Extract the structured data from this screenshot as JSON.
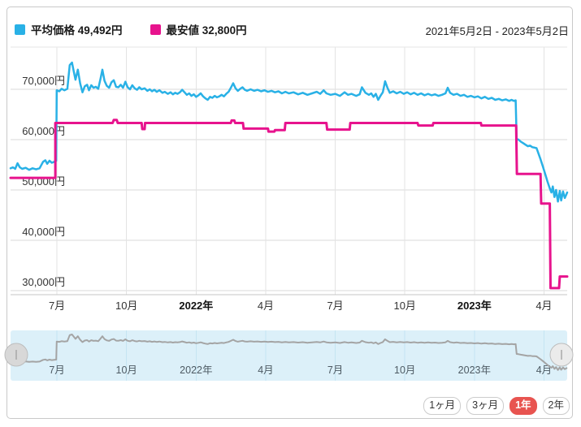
{
  "legend": {
    "items": [
      {
        "label": "平均価格 49,492円",
        "swatch_color": "#29b1e6"
      },
      {
        "label": "最安値 32,800円",
        "swatch_color": "#e7138d"
      }
    ],
    "date_range": "2021年5月2日 - 2023年5月2日"
  },
  "range_buttons": [
    {
      "label": "1ヶ月",
      "selected": false
    },
    {
      "label": "3ヶ月",
      "selected": false
    },
    {
      "label": "1年",
      "selected": true
    },
    {
      "label": "2年",
      "selected": false
    }
  ],
  "colors": {
    "average_line": "#29b1e6",
    "lowest_line": "#e7138d",
    "grid_h": "#d9d9d9",
    "grid_v": "#e3e3e3",
    "axis_line": "#c6c6c6",
    "plot_top_line": "#e6e6e6",
    "navigator_bg": "#dcf0f9",
    "navigator_grid": "#c5e5f2",
    "navigator_line": "#a4a4a4",
    "handle_fill_left": "#d8d8d8",
    "handle_fill_right": "#ebebeb",
    "handle_stroke": "#bdbdbd",
    "selected_button_bg": "#e85450"
  },
  "chart_data": {
    "type": "line",
    "title": "",
    "x_axis": {
      "unit": "months since 2021-05-02",
      "range": [
        0,
        24
      ],
      "ticks": [
        {
          "t": 2,
          "label": "7月",
          "bold": false
        },
        {
          "t": 5,
          "label": "10月",
          "bold": false
        },
        {
          "t": 8,
          "label": "2022年",
          "bold": true
        },
        {
          "t": 11,
          "label": "4月",
          "bold": false
        },
        {
          "t": 14,
          "label": "7月",
          "bold": false
        },
        {
          "t": 17,
          "label": "10月",
          "bold": false
        },
        {
          "t": 20,
          "label": "2023年",
          "bold": true
        },
        {
          "t": 23,
          "label": "4月",
          "bold": false
        }
      ]
    },
    "y_axis": {
      "range": [
        29200,
        78400
      ],
      "grid": true,
      "ticks": [
        {
          "value": 30000,
          "label": "30,000円"
        },
        {
          "value": 40000,
          "label": "40,000円"
        },
        {
          "value": 50000,
          "label": "50,000円"
        },
        {
          "value": 60000,
          "label": "60,000円"
        },
        {
          "value": 70000,
          "label": "70,000円"
        }
      ]
    },
    "series": [
      {
        "name": "平均価格",
        "current_value": 49492,
        "color": "#29b1e6",
        "points": [
          [
            0,
            54300
          ],
          [
            0.1,
            54500
          ],
          [
            0.2,
            54200
          ],
          [
            0.3,
            55300
          ],
          [
            0.4,
            54500
          ],
          [
            0.5,
            54200
          ],
          [
            0.65,
            54400
          ],
          [
            0.8,
            54000
          ],
          [
            0.95,
            54300
          ],
          [
            1.1,
            54100
          ],
          [
            1.25,
            54300
          ],
          [
            1.4,
            55600
          ],
          [
            1.5,
            55900
          ],
          [
            1.58,
            55200
          ],
          [
            1.68,
            55800
          ],
          [
            1.78,
            55400
          ],
          [
            1.88,
            55600
          ],
          [
            1.97,
            55800
          ],
          [
            1.99,
            69800
          ],
          [
            2.1,
            69600
          ],
          [
            2.2,
            70100
          ],
          [
            2.32,
            69800
          ],
          [
            2.45,
            70100
          ],
          [
            2.55,
            74800
          ],
          [
            2.65,
            75300
          ],
          [
            2.72,
            73700
          ],
          [
            2.8,
            71900
          ],
          [
            2.9,
            73900
          ],
          [
            3.0,
            71200
          ],
          [
            3.1,
            69400
          ],
          [
            3.2,
            70600
          ],
          [
            3.3,
            70900
          ],
          [
            3.38,
            69800
          ],
          [
            3.48,
            70800
          ],
          [
            3.58,
            70300
          ],
          [
            3.68,
            70500
          ],
          [
            3.78,
            70100
          ],
          [
            3.88,
            72100
          ],
          [
            3.96,
            73900
          ],
          [
            4.05,
            71700
          ],
          [
            4.15,
            70700
          ],
          [
            4.25,
            70300
          ],
          [
            4.35,
            71400
          ],
          [
            4.45,
            71800
          ],
          [
            4.55,
            70500
          ],
          [
            4.65,
            70400
          ],
          [
            4.75,
            70900
          ],
          [
            4.85,
            70300
          ],
          [
            4.95,
            71500
          ],
          [
            5.05,
            70400
          ],
          [
            5.15,
            70000
          ],
          [
            5.25,
            70800
          ],
          [
            5.35,
            70200
          ],
          [
            5.45,
            69900
          ],
          [
            5.55,
            70400
          ],
          [
            5.65,
            70000
          ],
          [
            5.78,
            70200
          ],
          [
            5.9,
            69700
          ],
          [
            6.0,
            70000
          ],
          [
            6.1,
            69600
          ],
          [
            6.2,
            69900
          ],
          [
            6.3,
            69500
          ],
          [
            6.42,
            69800
          ],
          [
            6.55,
            69300
          ],
          [
            6.65,
            69500
          ],
          [
            6.78,
            69100
          ],
          [
            6.9,
            69400
          ],
          [
            7.0,
            69000
          ],
          [
            7.1,
            69300
          ],
          [
            7.2,
            69100
          ],
          [
            7.3,
            69400
          ],
          [
            7.4,
            69900
          ],
          [
            7.5,
            69400
          ],
          [
            7.6,
            68900
          ],
          [
            7.7,
            69200
          ],
          [
            7.8,
            68700
          ],
          [
            7.9,
            69000
          ],
          [
            8.0,
            68500
          ],
          [
            8.1,
            68800
          ],
          [
            8.2,
            69200
          ],
          [
            8.3,
            68600
          ],
          [
            8.4,
            68200
          ],
          [
            8.5,
            67900
          ],
          [
            8.6,
            68500
          ],
          [
            8.7,
            68300
          ],
          [
            8.8,
            68700
          ],
          [
            8.9,
            68400
          ],
          [
            9.0,
            68600
          ],
          [
            9.1,
            68900
          ],
          [
            9.2,
            68600
          ],
          [
            9.3,
            69100
          ],
          [
            9.4,
            69500
          ],
          [
            9.5,
            70300
          ],
          [
            9.6,
            71200
          ],
          [
            9.7,
            70200
          ],
          [
            9.8,
            69700
          ],
          [
            9.9,
            70100
          ],
          [
            10.0,
            70400
          ],
          [
            10.1,
            69900
          ],
          [
            10.2,
            69700
          ],
          [
            10.35,
            70000
          ],
          [
            10.5,
            69700
          ],
          [
            10.65,
            69900
          ],
          [
            10.8,
            69600
          ],
          [
            10.95,
            69800
          ],
          [
            11.1,
            69500
          ],
          [
            11.25,
            69700
          ],
          [
            11.4,
            69400
          ],
          [
            11.55,
            69600
          ],
          [
            11.7,
            69200
          ],
          [
            11.85,
            69500
          ],
          [
            12.0,
            69200
          ],
          [
            12.2,
            69400
          ],
          [
            12.4,
            69000
          ],
          [
            12.6,
            69300
          ],
          [
            12.8,
            68900
          ],
          [
            13.0,
            69200
          ],
          [
            13.2,
            69500
          ],
          [
            13.35,
            69100
          ],
          [
            13.5,
            69800
          ],
          [
            13.62,
            69200
          ],
          [
            13.8,
            68900
          ],
          [
            14.0,
            69100
          ],
          [
            14.2,
            68700
          ],
          [
            14.4,
            69400
          ],
          [
            14.55,
            68900
          ],
          [
            14.7,
            69100
          ],
          [
            14.9,
            68700
          ],
          [
            15.05,
            69000
          ],
          [
            15.15,
            70400
          ],
          [
            15.3,
            69300
          ],
          [
            15.45,
            68900
          ],
          [
            15.55,
            69200
          ],
          [
            15.65,
            68500
          ],
          [
            15.75,
            69100
          ],
          [
            15.85,
            67900
          ],
          [
            15.95,
            68700
          ],
          [
            16.05,
            69400
          ],
          [
            16.15,
            71600
          ],
          [
            16.25,
            70300
          ],
          [
            16.35,
            69300
          ],
          [
            16.5,
            69600
          ],
          [
            16.65,
            69200
          ],
          [
            16.8,
            69500
          ],
          [
            16.95,
            69100
          ],
          [
            17.1,
            69400
          ],
          [
            17.25,
            69000
          ],
          [
            17.4,
            69300
          ],
          [
            17.55,
            68900
          ],
          [
            17.7,
            69200
          ],
          [
            17.85,
            68800
          ],
          [
            18.0,
            69100
          ],
          [
            18.15,
            68800
          ],
          [
            18.3,
            69000
          ],
          [
            18.45,
            68700
          ],
          [
            18.6,
            68900
          ],
          [
            18.75,
            69200
          ],
          [
            18.85,
            70300
          ],
          [
            18.95,
            69300
          ],
          [
            19.1,
            68900
          ],
          [
            19.25,
            69100
          ],
          [
            19.4,
            68700
          ],
          [
            19.55,
            68900
          ],
          [
            19.7,
            68500
          ],
          [
            19.85,
            68700
          ],
          [
            20.0,
            68400
          ],
          [
            20.15,
            68600
          ],
          [
            20.3,
            68200
          ],
          [
            20.45,
            68500
          ],
          [
            20.6,
            68100
          ],
          [
            20.75,
            68300
          ],
          [
            20.9,
            67900
          ],
          [
            21.05,
            68100
          ],
          [
            21.2,
            67800
          ],
          [
            21.35,
            68000
          ],
          [
            21.5,
            67700
          ],
          [
            21.6,
            67900
          ],
          [
            21.7,
            67700
          ],
          [
            21.78,
            67800
          ],
          [
            21.82,
            60200
          ],
          [
            21.9,
            60000
          ],
          [
            22.0,
            59600
          ],
          [
            22.1,
            59300
          ],
          [
            22.2,
            59000
          ],
          [
            22.3,
            58700
          ],
          [
            22.4,
            58800
          ],
          [
            22.5,
            58500
          ],
          [
            22.6,
            58400
          ],
          [
            22.68,
            58300
          ],
          [
            22.75,
            57400
          ],
          [
            22.85,
            56100
          ],
          [
            22.95,
            54700
          ],
          [
            23.05,
            53200
          ],
          [
            23.15,
            51700
          ],
          [
            23.25,
            50300
          ],
          [
            23.32,
            49500
          ],
          [
            23.38,
            50700
          ],
          [
            23.45,
            48600
          ],
          [
            23.52,
            50000
          ],
          [
            23.6,
            47700
          ],
          [
            23.68,
            49800
          ],
          [
            23.74,
            47900
          ],
          [
            23.82,
            49700
          ],
          [
            23.9,
            48400
          ],
          [
            24,
            49500
          ]
        ]
      },
      {
        "name": "最安値",
        "current_value": 32800,
        "color": "#e7138d",
        "points": [
          [
            0,
            52400
          ],
          [
            1.93,
            52400
          ],
          [
            1.93,
            63300
          ],
          [
            4.4,
            63300
          ],
          [
            4.45,
            63900
          ],
          [
            4.58,
            63900
          ],
          [
            4.62,
            63300
          ],
          [
            5.65,
            63300
          ],
          [
            5.68,
            62100
          ],
          [
            5.78,
            62100
          ],
          [
            5.8,
            63300
          ],
          [
            9.5,
            63300
          ],
          [
            9.53,
            63800
          ],
          [
            9.65,
            63800
          ],
          [
            9.68,
            63300
          ],
          [
            10.02,
            63300
          ],
          [
            10.05,
            62200
          ],
          [
            11.1,
            62200
          ],
          [
            11.12,
            61600
          ],
          [
            11.38,
            61600
          ],
          [
            11.4,
            61900
          ],
          [
            11.82,
            61900
          ],
          [
            11.85,
            63300
          ],
          [
            13.62,
            63300
          ],
          [
            13.65,
            62000
          ],
          [
            14.62,
            62000
          ],
          [
            14.65,
            63300
          ],
          [
            17.55,
            63300
          ],
          [
            17.58,
            62800
          ],
          [
            18.2,
            62800
          ],
          [
            18.23,
            63300
          ],
          [
            20.28,
            63300
          ],
          [
            20.3,
            62800
          ],
          [
            21.8,
            62800
          ],
          [
            21.83,
            53200
          ],
          [
            22.85,
            53200
          ],
          [
            22.88,
            47300
          ],
          [
            23.25,
            47300
          ],
          [
            23.28,
            30500
          ],
          [
            23.65,
            30500
          ],
          [
            23.68,
            32800
          ],
          [
            24,
            32800
          ]
        ]
      }
    ],
    "navigator": {
      "shows_series": "平均価格",
      "ticks_same_as_main": true
    },
    "legend_position": "top-left",
    "grid": true
  }
}
